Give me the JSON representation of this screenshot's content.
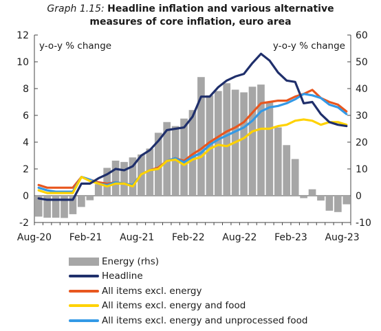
{
  "title": {
    "label": "Graph 1.15:",
    "text_line1": "Headline inflation and various alternative",
    "text_line2": "measures of core inflation, euro area"
  },
  "chart_data": {
    "type": "bar+line",
    "title": "Headline inflation and various alternative measures of core inflation, euro area",
    "left_axis": {
      "label": "y-o-y % change",
      "min": -2,
      "max": 12,
      "ticks": [
        -2,
        0,
        2,
        4,
        6,
        8,
        10,
        12
      ]
    },
    "right_axis": {
      "label": "y-o-y % change",
      "min": -10,
      "max": 60,
      "ticks": [
        -10,
        0,
        10,
        20,
        30,
        40,
        50,
        60
      ]
    },
    "x_tick_labels": [
      "Aug-20",
      "Feb-21",
      "Aug-21",
      "Feb-22",
      "Aug-22",
      "Feb-23",
      "Aug-23"
    ],
    "months": [
      "Aug-20",
      "Sep-20",
      "Oct-20",
      "Nov-20",
      "Dec-20",
      "Jan-21",
      "Feb-21",
      "Mar-21",
      "Apr-21",
      "May-21",
      "Jun-21",
      "Jul-21",
      "Aug-21",
      "Sep-21",
      "Oct-21",
      "Nov-21",
      "Dec-21",
      "Jan-22",
      "Feb-22",
      "Mar-22",
      "Apr-22",
      "May-22",
      "Jun-22",
      "Jul-22",
      "Aug-22",
      "Sep-22",
      "Oct-22",
      "Nov-22",
      "Dec-22",
      "Jan-23",
      "Feb-23",
      "Mar-23",
      "Apr-23",
      "May-23",
      "Jun-23",
      "Jul-23",
      "Aug-23"
    ],
    "series": [
      {
        "name": "Energy (rhs)",
        "kind": "bar",
        "axis": "right",
        "color": "#a6a6a6",
        "values": [
          -7.8,
          -8.2,
          -8.2,
          -8.3,
          -6.9,
          -4.2,
          -1.7,
          4.3,
          10.4,
          13.1,
          12.6,
          14.3,
          15.4,
          17.6,
          23.5,
          27.5,
          26.0,
          28.8,
          32.0,
          44.3,
          37.5,
          39.1,
          42.0,
          39.6,
          38.6,
          40.7,
          41.5,
          34.9,
          25.5,
          18.9,
          13.7,
          -0.9,
          2.4,
          -1.8,
          -5.6,
          -6.1,
          -3.2
        ]
      },
      {
        "name": "Headline",
        "kind": "line",
        "axis": "left",
        "color": "#1f2f6b",
        "values": [
          -0.2,
          -0.3,
          -0.3,
          -0.3,
          -0.3,
          0.9,
          0.9,
          1.3,
          1.6,
          2.0,
          1.9,
          2.2,
          3.0,
          3.4,
          4.1,
          4.9,
          5.0,
          5.1,
          5.9,
          7.4,
          7.4,
          8.1,
          8.6,
          8.9,
          9.1,
          9.9,
          10.6,
          10.1,
          9.2,
          8.6,
          8.5,
          6.9,
          7.0,
          6.1,
          5.5,
          5.3,
          5.2
        ]
      },
      {
        "name": "All items excl. energy",
        "kind": "line",
        "axis": "left",
        "color": "#e8571f",
        "values": [
          0.8,
          0.6,
          0.6,
          0.6,
          0.6,
          1.4,
          1.2,
          1.0,
          0.9,
          1.0,
          0.9,
          0.8,
          1.6,
          1.9,
          2.1,
          2.6,
          2.8,
          2.6,
          3.1,
          3.5,
          4.0,
          4.4,
          4.8,
          5.1,
          5.5,
          6.2,
          6.9,
          7.0,
          7.1,
          7.1,
          7.4,
          7.6,
          7.9,
          7.3,
          7.0,
          6.8,
          6.3
        ]
      },
      {
        "name": "All items excl. energy and food",
        "kind": "line",
        "axis": "left",
        "color": "#ffd200",
        "values": [
          0.4,
          0.2,
          0.2,
          0.2,
          0.2,
          1.4,
          1.1,
          0.9,
          0.7,
          0.9,
          0.9,
          0.7,
          1.6,
          1.9,
          2.0,
          2.6,
          2.7,
          2.3,
          2.7,
          2.9,
          3.5,
          3.8,
          3.7,
          4.0,
          4.3,
          4.8,
          5.0,
          5.0,
          5.2,
          5.3,
          5.6,
          5.7,
          5.6,
          5.3,
          5.5,
          5.5,
          5.3
        ]
      },
      {
        "name": "All items excl. energy and unprocessed food",
        "kind": "line",
        "axis": "left",
        "color": "#3399e6",
        "values": [
          0.6,
          0.4,
          0.3,
          0.3,
          0.3,
          1.4,
          1.2,
          0.9,
          0.8,
          1.0,
          0.9,
          0.8,
          1.6,
          1.9,
          2.0,
          2.6,
          2.8,
          2.5,
          2.9,
          3.2,
          3.8,
          4.2,
          4.5,
          4.8,
          5.1,
          5.6,
          6.3,
          6.6,
          6.7,
          6.9,
          7.2,
          7.6,
          7.5,
          7.3,
          6.8,
          6.6,
          6.1
        ]
      }
    ],
    "legend_position": "below",
    "grid": false
  }
}
